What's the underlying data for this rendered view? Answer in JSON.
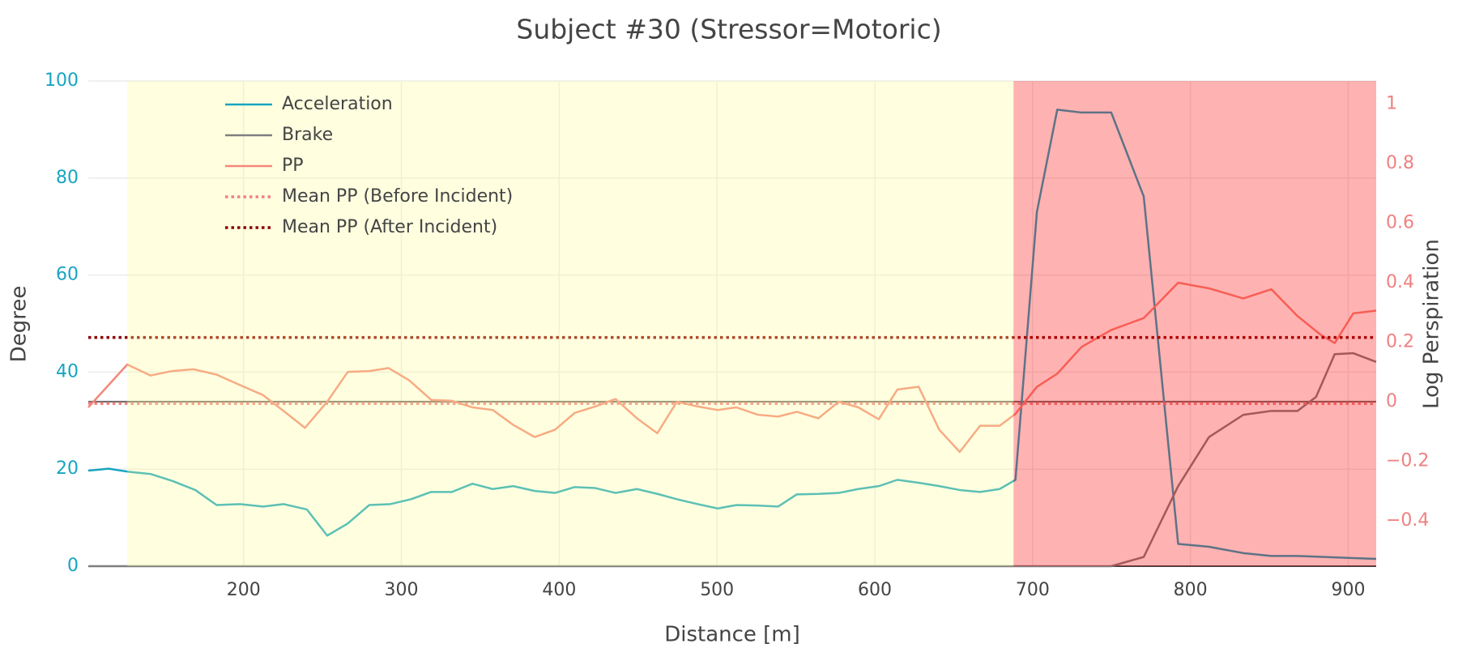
{
  "chart_data": {
    "type": "line",
    "title": "Subject #30 (Stressor=Motoric)",
    "xlabel": "Distance [m]",
    "ylabel": "Degree",
    "y2label": "Log Perspiration",
    "xlim": [
      101.6,
      917.7
    ],
    "ylim": [
      0,
      100
    ],
    "y2lim": [
      -0.553,
      1.078
    ],
    "xticks": [
      200,
      300,
      400,
      500,
      600,
      700,
      800,
      900
    ],
    "yticks": [
      0,
      20,
      40,
      60,
      80,
      100
    ],
    "y2ticks": [
      {
        "value": -0.4,
        "label": "−0.4"
      },
      {
        "value": -0.2,
        "label": "−0.2"
      },
      0,
      0.2,
      0.4,
      0.6,
      0.8,
      1
    ],
    "grid": true,
    "zeroline": true,
    "legend": "upper left",
    "ytick_color": "#17a5c0",
    "y2tick_color": "#f08080",
    "regions": [
      {
        "x0": 126.3,
        "x1": 687.9,
        "color": "#ffff99",
        "opacity": 0.3
      },
      {
        "x0": 687.9,
        "x1": 917.7,
        "color": "#ff0000",
        "opacity": 0.3
      }
    ],
    "series": [
      {
        "name": "Acceleration",
        "color": "#17a5c0",
        "axis": "y",
        "x": [
          101.6,
          114.6,
          126.3,
          141.1,
          154.6,
          169.4,
          182.9,
          197.7,
          212.4,
          225.3,
          240.1,
          253.0,
          266.0,
          279.6,
          293.1,
          306.1,
          318.9,
          332.0,
          345.0,
          357.9,
          370.9,
          384.5,
          397.4,
          409.8,
          422.8,
          435.7,
          449.3,
          462.2,
          474.6,
          487.6,
          500.5,
          512.3,
          525.9,
          538.8,
          550.6,
          564.2,
          577.2,
          589.5,
          602.5,
          614.3,
          627.8,
          640.8,
          653.8,
          666.7,
          679.1,
          689.1,
          702.7,
          715.6,
          731.0,
          749.8,
          770.4,
          792.2,
          811.7,
          833.5,
          851.3,
          867.8,
          917.7
        ],
        "values": [
          19.7,
          20.1,
          19.5,
          19.0,
          17.6,
          15.7,
          12.6,
          12.8,
          12.3,
          12.8,
          11.7,
          6.3,
          8.8,
          12.6,
          12.8,
          13.8,
          15.3,
          15.3,
          17.0,
          15.9,
          16.5,
          15.5,
          15.1,
          16.3,
          16.1,
          15.1,
          15.9,
          14.9,
          13.8,
          12.8,
          11.9,
          12.6,
          12.5,
          12.3,
          14.8,
          14.9,
          15.1,
          15.9,
          16.5,
          17.8,
          17.2,
          16.5,
          15.7,
          15.3,
          15.9,
          17.8,
          73.0,
          94.1,
          93.5,
          93.5,
          76.2,
          4.6,
          4.0,
          2.7,
          2.1,
          2.1,
          1.5
        ]
      },
      {
        "name": "Brake",
        "color": "#7f7f7f",
        "axis": "y",
        "x": [
          101.6,
          749.8,
          770.4,
          792.2,
          811.7,
          833.5,
          851.3,
          867.8,
          879.6,
          891.4,
          903.2,
          917.7
        ],
        "values": [
          0,
          0,
          1.9,
          16.5,
          26.6,
          31.2,
          32.0,
          32.0,
          34.9,
          43.7,
          43.9,
          42.1
        ]
      },
      {
        "name": "PP",
        "color": "#f4877a",
        "axis": "y2",
        "x": [
          101.6,
          126.3,
          141.1,
          154.6,
          168.2,
          182.9,
          197.7,
          212.4,
          225.3,
          238.9,
          253.0,
          266.0,
          279.6,
          291.9,
          304.9,
          318.9,
          332.0,
          345.0,
          357.9,
          370.9,
          384.5,
          397.4,
          409.8,
          422.8,
          435.7,
          449.3,
          462.2,
          474.6,
          487.6,
          500.5,
          512.3,
          525.9,
          538.8,
          550.6,
          564.2,
          577.2,
          589.5,
          602.5,
          614.3,
          627.8,
          640.8,
          653.8,
          666.7,
          679.1,
          689.1,
          702.7,
          715.6,
          731.0,
          749.8,
          770.4,
          792.2,
          811.7,
          833.5,
          851.3,
          867.8,
          882.5,
          891.4,
          903.2,
          917.7
        ],
        "values": [
          -0.019,
          0.125,
          0.088,
          0.103,
          0.109,
          0.091,
          0.056,
          0.022,
          -0.031,
          -0.088,
          0,
          0.1,
          0.103,
          0.113,
          0.072,
          0.006,
          0.003,
          -0.019,
          -0.028,
          -0.078,
          -0.119,
          -0.094,
          -0.038,
          -0.016,
          0.009,
          -0.056,
          -0.106,
          0,
          -0.016,
          -0.028,
          -0.019,
          -0.044,
          -0.05,
          -0.034,
          -0.056,
          0,
          -0.019,
          -0.059,
          0.041,
          0.05,
          -0.094,
          -0.169,
          -0.081,
          -0.081,
          -0.041,
          0.05,
          0.094,
          0.184,
          0.241,
          0.281,
          0.4,
          0.381,
          0.347,
          0.378,
          0.288,
          0.225,
          0.197,
          0.297,
          0.306
        ]
      },
      {
        "name": "Mean PP (Before Incident)",
        "color": "#f08080",
        "axis": "y2",
        "dash": true,
        "hline": -0.006
      },
      {
        "name": "Mean PP (After Incident)",
        "color": "#8b0000",
        "axis": "y2",
        "dash": true,
        "hline": 0.216
      }
    ]
  }
}
